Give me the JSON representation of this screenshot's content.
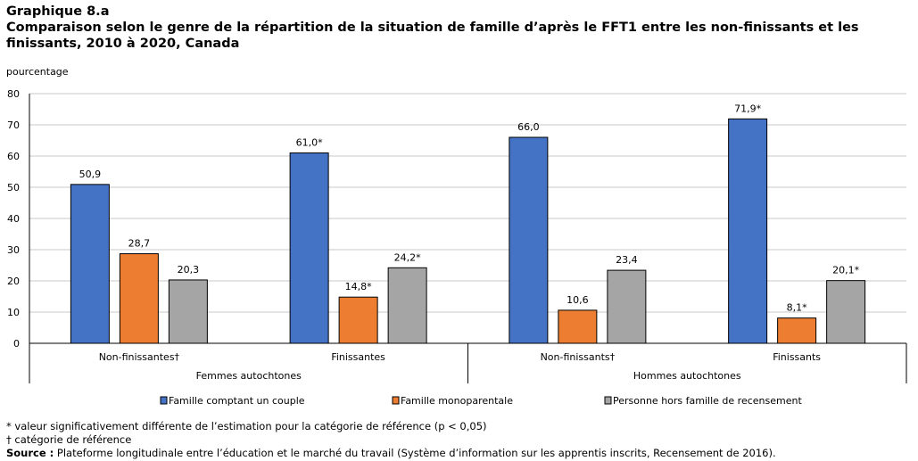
{
  "header": {
    "title_line1": "Graphique 8.a",
    "title_line2": "Comparaison selon le genre de la répartition de la situation de famille d’après le FFT1 entre les non-finissants et les finissants, 2010 à 2020, Canada"
  },
  "chart_data": {
    "type": "bar",
    "ylabel": "pourcentage",
    "ylim": [
      0,
      80
    ],
    "yticks": [
      0,
      10,
      20,
      30,
      40,
      50,
      60,
      70,
      80
    ],
    "grid": true,
    "legend_position": "bottom",
    "categories": [
      "Non-finissantes†",
      "Finissantes",
      "Non-finissants†",
      "Finissants"
    ],
    "groups": [
      {
        "label": "Femmes autochtones",
        "categories": [
          0,
          1
        ]
      },
      {
        "label": "Hommes autochtones",
        "categories": [
          2,
          3
        ]
      }
    ],
    "series": [
      {
        "name": "Famille comptant un couple",
        "color": "#4472c4",
        "values": [
          50.9,
          61.0,
          66.0,
          71.9
        ],
        "labels": [
          "50,9",
          "61,0*",
          "66,0",
          "71,9*"
        ]
      },
      {
        "name": "Famille monoparentale",
        "color": "#ed7d31",
        "values": [
          28.7,
          14.8,
          10.6,
          8.1
        ],
        "labels": [
          "28,7",
          "14,8*",
          "10,6",
          "8,1*"
        ]
      },
      {
        "name": "Personne hors famille de recensement",
        "color": "#a5a5a5",
        "values": [
          20.3,
          24.2,
          23.4,
          20.1
        ],
        "labels": [
          "20,3",
          "24,2*",
          "23,4",
          "20,1*"
        ]
      }
    ]
  },
  "notes": {
    "note1": "* valeur significativement différente de l’estimation pour la catégorie de référence (p < 0,05)",
    "note2": "† catégorie de référence",
    "source_label": "Source :",
    "source_text": " Plateforme longitudinale entre l’éducation et le marché du travail (Système d’information sur les apprentis inscrits, Recensement de 2016)."
  }
}
